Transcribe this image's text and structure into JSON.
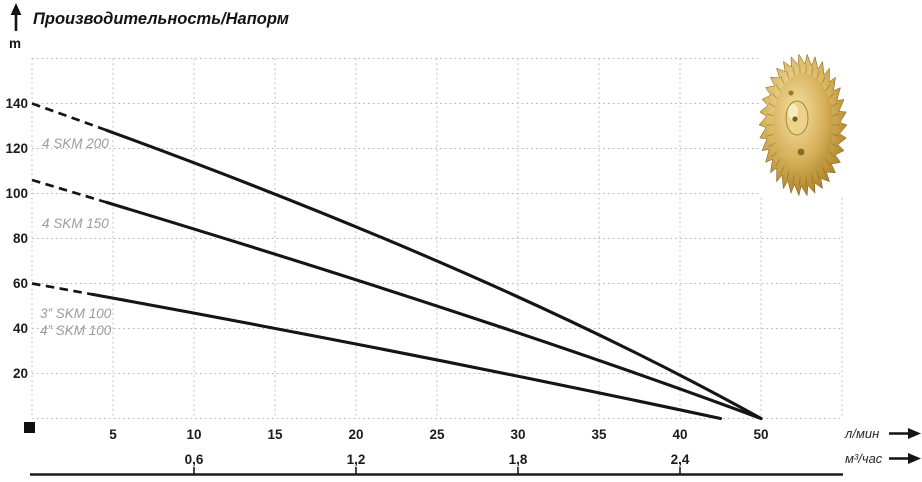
{
  "title": "Производительность/Напорм",
  "y_axis": {
    "unit_label": "m",
    "tick_labels": [
      "140",
      "120",
      "100",
      "80",
      "60",
      "40",
      "20"
    ]
  },
  "x_axis_flow_lmin": {
    "unit_label": "л/мин",
    "tick_labels": [
      "5",
      "10",
      "15",
      "20",
      "25",
      "30",
      "35",
      "40",
      "50"
    ]
  },
  "x_axis_flow_m3h": {
    "unit_label": "м³/час",
    "tick_labels": [
      "0,6",
      "1,2",
      "1,8",
      "2,4"
    ]
  },
  "curve_labels": {
    "skm200": "4 SKM 200",
    "skm150": "4 SKM 150",
    "skm100_3in": "3” SKM 100",
    "skm100_4in": "4” SKM 100"
  },
  "decor": {
    "impeller_image": "brass-pump-impeller"
  },
  "colors": {
    "curve": "#151515",
    "grid": "#bcbcbc",
    "tick_text": "#1b1b1b",
    "curve_label_text": "#9b9b9b",
    "axis_rule": "#1b1b1b",
    "impeller_gold": "#d3ab55"
  },
  "chart_data": {
    "type": "line",
    "title": "Производительность/Напорм",
    "ylabel": "m",
    "xlabel_primary": "л/мин",
    "xlabel_secondary": "м³/час",
    "ylim": [
      0,
      160
    ],
    "y_tick_step": 20,
    "x_ticks_lmin": [
      5,
      10,
      15,
      20,
      25,
      30,
      35,
      40,
      50
    ],
    "x_ticks_m3h": [
      0.6,
      1.2,
      1.8,
      2.4
    ],
    "grid": true,
    "axis_note": "x gridlines are equally spaced per tick label; value 45 is skipped so the '50' tick sits one grid step after '40'; each curve is dashed below ~3.5 л/мин",
    "series": [
      {
        "name": "4 SKM 200",
        "points": [
          [
            0,
            140
          ],
          [
            25,
            70
          ],
          [
            50,
            0
          ]
        ],
        "dashed_until": 3.5
      },
      {
        "name": "4 SKM 150",
        "points": [
          [
            0,
            106
          ],
          [
            25,
            50
          ],
          [
            50,
            0
          ]
        ],
        "dashed_until": 3.5
      },
      {
        "name": "3”/4” SKM 100",
        "points": [
          [
            0,
            60
          ],
          [
            21.5,
            31
          ],
          [
            45,
            0
          ]
        ],
        "dashed_until": 3.5
      }
    ]
  }
}
